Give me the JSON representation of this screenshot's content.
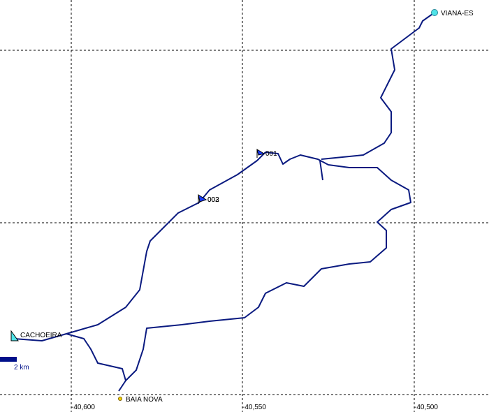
{
  "map": {
    "waypoints": [
      {
        "label": "VIANA-ES"
      },
      {
        "label": "001"
      },
      {
        "label": "002"
      },
      {
        "label": "003"
      },
      {
        "label": "CACHOEIRA"
      },
      {
        "label": "BAIA NOVA"
      }
    ],
    "grid_labels": [
      "-40,600",
      "-40,550",
      "-40,500"
    ],
    "scale_label": "2 km"
  }
}
